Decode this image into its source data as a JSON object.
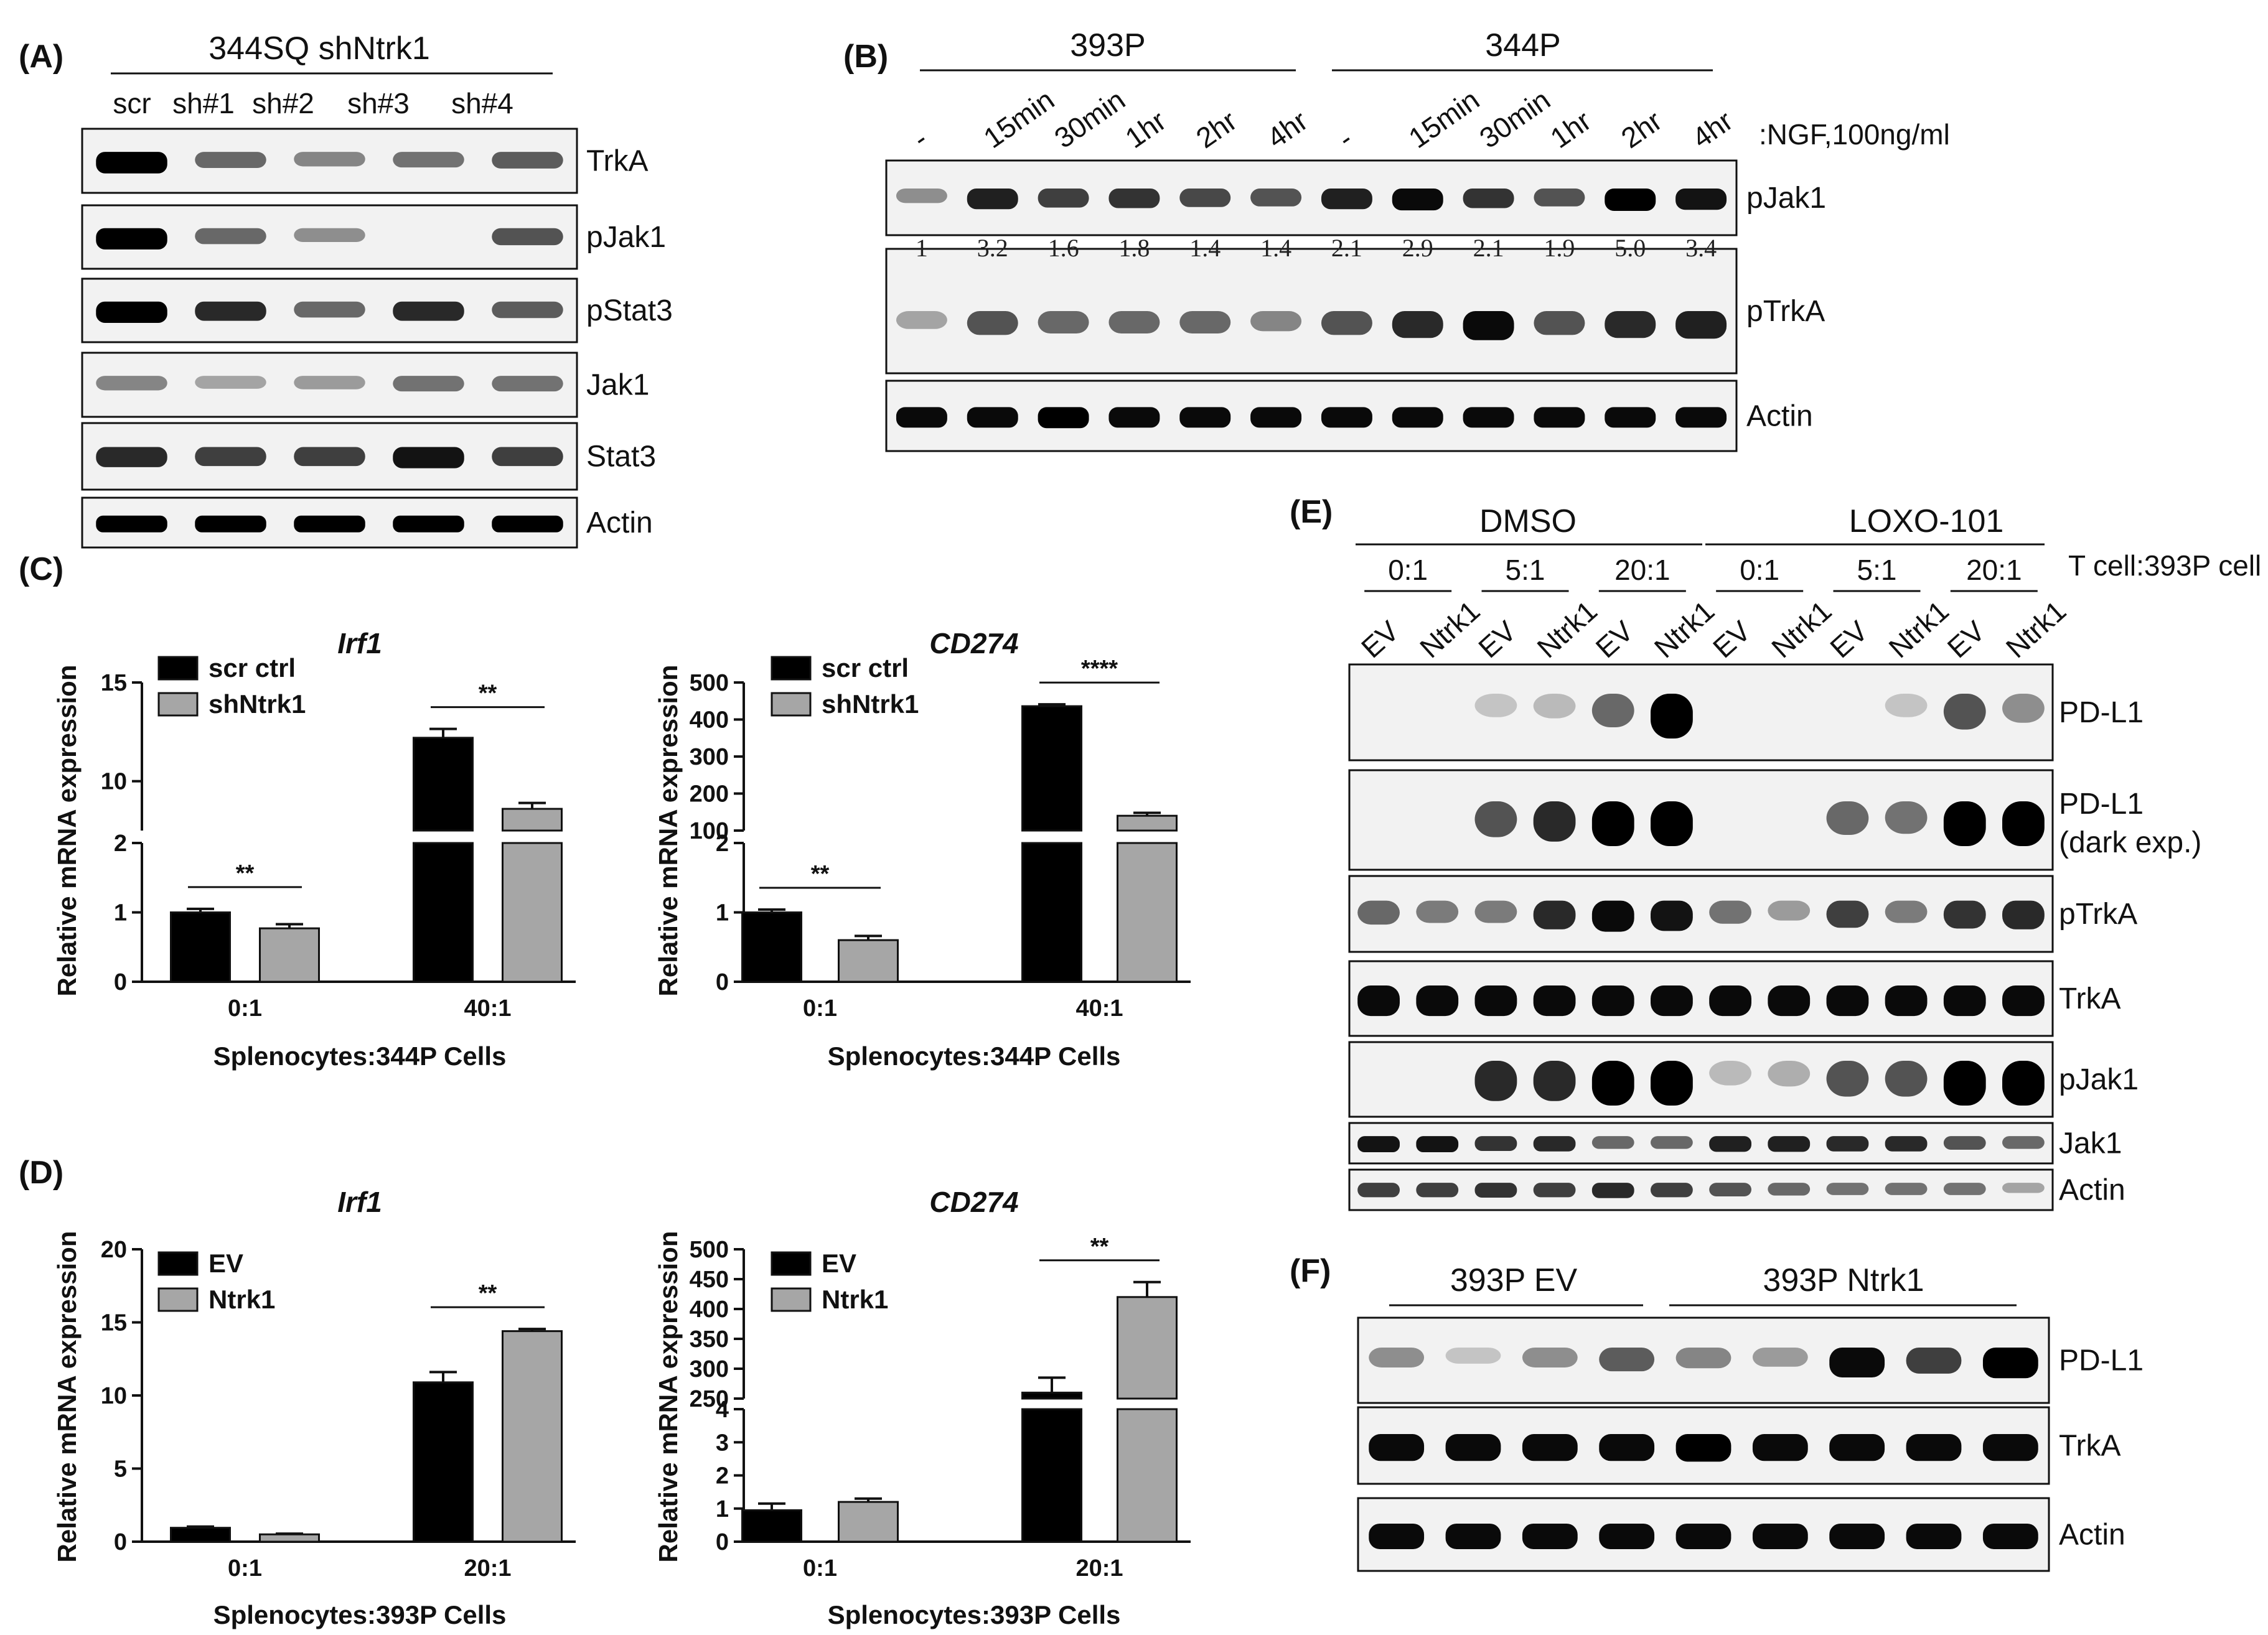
{
  "panels": {
    "A": {
      "label": "(A)",
      "header": "344SQ shNtrk1",
      "lanes": [
        "scr",
        "sh#1",
        "sh#2",
        "sh#3",
        "sh#4"
      ],
      "blots": [
        {
          "name": "TrkA",
          "intensity": [
            1.0,
            0.5,
            0.35,
            0.45,
            0.55
          ]
        },
        {
          "name": "pJak1",
          "intensity": [
            1.0,
            0.5,
            0.3,
            0.0,
            0.6
          ]
        },
        {
          "name": "pStat3",
          "intensity": [
            1.0,
            0.8,
            0.5,
            0.8,
            0.55
          ]
        },
        {
          "name": "Jak1",
          "intensity": [
            0.35,
            0.2,
            0.25,
            0.45,
            0.45
          ]
        },
        {
          "name": "Stat3",
          "intensity": [
            0.8,
            0.7,
            0.7,
            0.9,
            0.7
          ]
        },
        {
          "name": "Actin",
          "intensity": [
            1.0,
            1.0,
            1.0,
            1.0,
            1.0
          ]
        }
      ]
    },
    "B": {
      "label": "(B)",
      "groups": [
        "393P",
        "344P"
      ],
      "lanes": [
        "-",
        "15min",
        "30min",
        "1hr",
        "2hr",
        "4hr",
        "-",
        "15min",
        "30min",
        "1hr",
        "2hr",
        "4hr"
      ],
      "treatment": ":NGF,100ng/ml",
      "blots": [
        {
          "name": "pJak1",
          "intensity": [
            0.3,
            0.85,
            0.7,
            0.75,
            0.65,
            0.6,
            0.85,
            0.95,
            0.75,
            0.6,
            1.0,
            0.9
          ]
        },
        {
          "name": "pTrkA",
          "intensity": [
            0.2,
            0.6,
            0.5,
            0.5,
            0.5,
            0.35,
            0.6,
            0.8,
            0.95,
            0.6,
            0.8,
            0.85
          ]
        },
        {
          "name": "Actin",
          "intensity": [
            0.95,
            0.95,
            1.0,
            0.95,
            0.95,
            0.95,
            0.95,
            0.95,
            0.95,
            0.95,
            0.95,
            0.95
          ]
        }
      ],
      "quantification": [
        "1",
        "3.2",
        "1.6",
        "1.8",
        "1.4",
        "1.4",
        "2.1",
        "2.9",
        "2.1",
        "1.9",
        "5.0",
        "3.4"
      ]
    },
    "E": {
      "label": "(E)",
      "groups": [
        "DMSO",
        "LOXO-101"
      ],
      "ratios": [
        "0:1",
        "5:1",
        "20:1",
        "0:1",
        "5:1",
        "20:1"
      ],
      "ratio_label": "T cell:393P cell",
      "lanes": [
        "EV",
        "Ntrk1",
        "EV",
        "Ntrk1",
        "EV",
        "Ntrk1",
        "EV",
        "Ntrk1",
        "EV",
        "Ntrk1",
        "EV",
        "Ntrk1"
      ],
      "blots": [
        {
          "name": "PD-L1",
          "name2": "",
          "intensity": [
            0.0,
            0.0,
            0.05,
            0.1,
            0.5,
            1.0,
            0.0,
            0.0,
            0.0,
            0.05,
            0.6,
            0.3
          ]
        },
        {
          "name": "PD-L1",
          "name2": "(dark exp.)",
          "intensity": [
            0.0,
            0.0,
            0.6,
            0.8,
            1.0,
            1.0,
            0.0,
            0.0,
            0.5,
            0.45,
            1.0,
            1.0
          ]
        },
        {
          "name": "pTrkA",
          "intensity": [
            0.5,
            0.4,
            0.4,
            0.8,
            0.95,
            0.9,
            0.45,
            0.25,
            0.7,
            0.4,
            0.75,
            0.8
          ]
        },
        {
          "name": "TrkA",
          "intensity": [
            0.95,
            0.95,
            0.95,
            0.95,
            0.95,
            0.95,
            0.95,
            0.95,
            0.95,
            0.95,
            0.95,
            0.95
          ]
        },
        {
          "name": "pJak1",
          "intensity": [
            0.0,
            0.0,
            0.8,
            0.8,
            1.0,
            1.0,
            0.1,
            0.15,
            0.6,
            0.6,
            1.0,
            1.0
          ]
        },
        {
          "name": "Jak1",
          "intensity": [
            0.9,
            0.9,
            0.75,
            0.8,
            0.5,
            0.5,
            0.85,
            0.85,
            0.8,
            0.8,
            0.6,
            0.5
          ]
        },
        {
          "name": "Actin",
          "intensity": [
            0.7,
            0.7,
            0.75,
            0.7,
            0.8,
            0.7,
            0.6,
            0.5,
            0.45,
            0.45,
            0.45,
            0.2
          ]
        }
      ]
    },
    "F": {
      "label": "(F)",
      "groups": [
        "393P EV",
        "393P Ntrk1"
      ],
      "blots": [
        {
          "name": "PD-L1",
          "intensity": [
            0.3,
            0.05,
            0.3,
            0.55,
            0.35,
            0.25,
            0.95,
            0.7,
            1.0
          ]
        },
        {
          "name": "TrkA",
          "intensity": [
            0.95,
            0.95,
            0.95,
            0.95,
            1.0,
            0.95,
            0.95,
            0.95,
            0.95
          ]
        },
        {
          "name": "Actin",
          "intensity": [
            0.95,
            0.95,
            0.95,
            0.95,
            0.95,
            0.95,
            0.95,
            0.95,
            0.95
          ]
        }
      ]
    },
    "C": {
      "label": "(C)"
    },
    "D": {
      "label": "(D)"
    }
  },
  "chart_data": [
    {
      "panel": "C",
      "type": "bar",
      "broken_axis": true,
      "title": "Irf1",
      "ylabel": "Relative mRNA expression",
      "xlabel": "Splenocytes:344P Cells",
      "categories": [
        "0:1",
        "40:1"
      ],
      "series": [
        {
          "name": "scr ctrl",
          "color": "#000000",
          "values": [
            1.0,
            12.2
          ],
          "errors": [
            0.05,
            0.45
          ]
        },
        {
          "name": "shNtrk1",
          "color": "#a6a6a6",
          "values": [
            0.77,
            8.6
          ],
          "errors": [
            0.06,
            0.3
          ]
        }
      ],
      "lower_ticks": [
        "0",
        "1",
        "2"
      ],
      "upper_ticks": [
        "10",
        "15"
      ],
      "lower_range": [
        0,
        2
      ],
      "upper_range": [
        7.5,
        15
      ],
      "significance": [
        "**",
        "**"
      ]
    },
    {
      "panel": "C",
      "type": "bar",
      "broken_axis": true,
      "title": "CD274",
      "ylabel": "Relative mRNA expression",
      "xlabel": "Splenocytes:344P Cells",
      "categories": [
        "0:1",
        "40:1"
      ],
      "series": [
        {
          "name": "scr ctrl",
          "color": "#000000",
          "values": [
            1.0,
            436
          ],
          "errors": [
            0.04,
            5
          ]
        },
        {
          "name": "shNtrk1",
          "color": "#a6a6a6",
          "values": [
            0.6,
            140
          ],
          "errors": [
            0.06,
            8
          ]
        }
      ],
      "lower_ticks": [
        "0",
        "1",
        "2"
      ],
      "upper_ticks": [
        "100",
        "200",
        "300",
        "400",
        "500"
      ],
      "lower_range": [
        0,
        2
      ],
      "upper_range": [
        100,
        500
      ],
      "significance": [
        "**",
        "****"
      ]
    },
    {
      "panel": "D",
      "type": "bar",
      "broken_axis": false,
      "title": "Irf1",
      "ylabel": "Relative mRNA expression",
      "xlabel": "Splenocytes:393P Cells",
      "categories": [
        "0:1",
        "20:1"
      ],
      "series": [
        {
          "name": "EV",
          "color": "#000000",
          "values": [
            0.95,
            10.9
          ],
          "errors": [
            0.08,
            0.7
          ]
        },
        {
          "name": "Ntrk1",
          "color": "#a6a6a6",
          "values": [
            0.5,
            14.4
          ],
          "errors": [
            0.05,
            0.15
          ]
        }
      ],
      "ticks": [
        "0",
        "5",
        "10",
        "15",
        "20"
      ],
      "ylim": [
        0,
        20
      ],
      "significance": [
        "**"
      ]
    },
    {
      "panel": "D",
      "type": "bar",
      "broken_axis": true,
      "title": "CD274",
      "ylabel": "Relative mRNA expression",
      "xlabel": "Splenocytes:393P Cells",
      "categories": [
        "0:1",
        "20:1"
      ],
      "series": [
        {
          "name": "EV",
          "color": "#000000",
          "values": [
            0.95,
            260
          ],
          "errors": [
            0.2,
            25
          ]
        },
        {
          "name": "Ntrk1",
          "color": "#a6a6a6",
          "values": [
            1.2,
            420
          ],
          "errors": [
            0.1,
            25
          ]
        }
      ],
      "lower_ticks": [
        "0",
        "1",
        "2",
        "3",
        "4"
      ],
      "upper_ticks": [
        "250",
        "300",
        "350",
        "400",
        "450",
        "500"
      ],
      "lower_range": [
        0,
        4
      ],
      "upper_range": [
        250,
        500
      ],
      "significance": [
        "**"
      ]
    }
  ]
}
